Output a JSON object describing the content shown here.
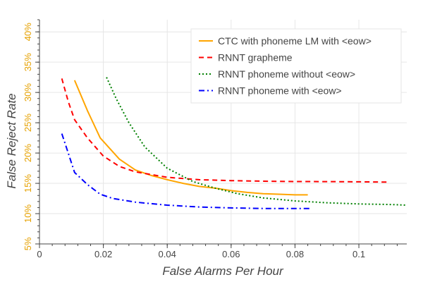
{
  "chart_data": {
    "type": "line",
    "title": "",
    "xlabel": "False Alarms Per Hour",
    "ylabel": "False Reject Rate",
    "xlim": [
      0,
      0.115
    ],
    "ylim": [
      5,
      42
    ],
    "x_ticks": [
      0,
      0.02,
      0.04,
      0.06,
      0.08,
      0.1
    ],
    "x_tick_labels": [
      "0",
      "0.02",
      "0.04",
      "0.06",
      "0.08",
      "0.1"
    ],
    "y_ticks": [
      5,
      10,
      15,
      20,
      25,
      30,
      35,
      40
    ],
    "y_tick_labels": [
      "5%",
      "10%",
      "15%",
      "20%",
      "25%",
      "30%",
      "35%",
      "40%"
    ],
    "grid": true,
    "legend_position": "top-right",
    "colors": {
      "ytick": "#e6a100",
      "axis": "#444444",
      "grid": "#e6e6e6"
    },
    "series": [
      {
        "name": "CTC with phoneme LM with <eow>",
        "color": "#ffa500",
        "dash": "solid",
        "x": [
          0.011,
          0.015,
          0.019,
          0.025,
          0.03,
          0.035,
          0.04,
          0.045,
          0.05,
          0.055,
          0.06,
          0.065,
          0.07,
          0.075,
          0.08,
          0.084
        ],
        "y": [
          32,
          27,
          22.5,
          19,
          17.2,
          16.3,
          15.6,
          15,
          14.5,
          14.2,
          13.8,
          13.5,
          13.3,
          13.2,
          13.1,
          13.1
        ]
      },
      {
        "name": "RNNT grapheme",
        "color": "#ff0000",
        "dash": "dashed",
        "x": [
          0.007,
          0.009,
          0.011,
          0.015,
          0.02,
          0.025,
          0.03,
          0.04,
          0.05,
          0.06,
          0.07,
          0.08,
          0.09,
          0.1,
          0.109
        ],
        "y": [
          32.3,
          28.5,
          25.5,
          22.5,
          19.5,
          17.8,
          16.9,
          16.0,
          15.6,
          15.45,
          15.35,
          15.3,
          15.28,
          15.25,
          15.2
        ]
      },
      {
        "name": "RNNT phoneme without <eow>",
        "color": "#008000",
        "dash": "dotted",
        "x": [
          0.021,
          0.024,
          0.028,
          0.033,
          0.04,
          0.048,
          0.055,
          0.062,
          0.07,
          0.08,
          0.09,
          0.1,
          0.11,
          0.115
        ],
        "y": [
          32.5,
          29,
          25,
          21,
          17.5,
          15.3,
          14.2,
          13.3,
          12.6,
          12.1,
          11.8,
          11.6,
          11.5,
          11.4
        ]
      },
      {
        "name": "RNNT phoneme with <eow>",
        "color": "#0000ff",
        "dash": "dashdot",
        "x": [
          0.007,
          0.009,
          0.011,
          0.015,
          0.019,
          0.023,
          0.03,
          0.04,
          0.05,
          0.06,
          0.07,
          0.08,
          0.085
        ],
        "y": [
          23.2,
          20,
          16.8,
          14.8,
          13.2,
          12.5,
          11.9,
          11.4,
          11.1,
          10.95,
          10.85,
          10.85,
          10.85
        ]
      }
    ]
  }
}
